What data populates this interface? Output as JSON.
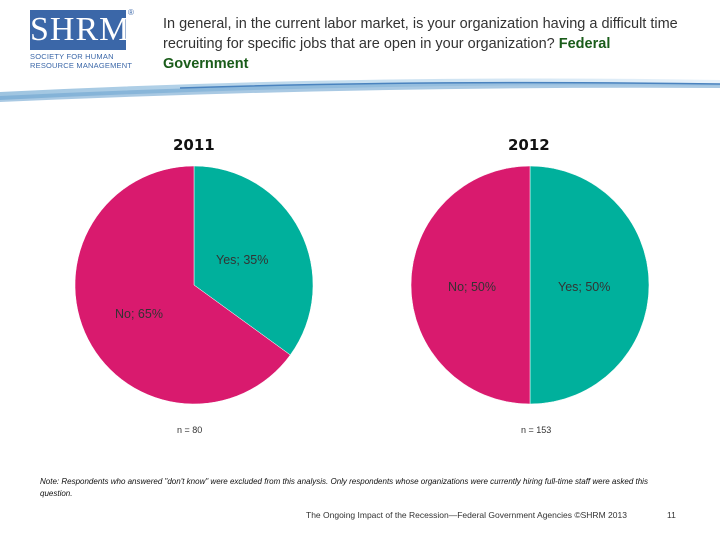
{
  "logo": {
    "mark": "SHRM",
    "reg": "®",
    "tagline": "Society for Human Resource Management"
  },
  "question": {
    "text": "In general, in the current labor market, is your organization having a difficult time recruiting for specific jobs that are open in your organization?",
    "emphasis": "Federal Government"
  },
  "colors": {
    "yes": "#00b09c",
    "no": "#d91a6e",
    "logo": "#3b67a8",
    "emphasis": "#1a5c1a"
  },
  "chart_data": [
    {
      "type": "pie",
      "title": "2011",
      "slices": [
        {
          "label": "Yes",
          "value": 35,
          "text": "Yes; 35%"
        },
        {
          "label": "No",
          "value": 65,
          "text": "No; 65%"
        }
      ],
      "n_label": "n = 80"
    },
    {
      "type": "pie",
      "title": "2012",
      "slices": [
        {
          "label": "Yes",
          "value": 50,
          "text": "Yes; 50%"
        },
        {
          "label": "No",
          "value": 50,
          "text": "No; 50%"
        }
      ],
      "n_label": "n = 153"
    }
  ],
  "note": "Note: Respondents who answered \"don't know\" were excluded from this analysis. Only respondents whose organizations were currently hiring full-time staff were asked this question.",
  "footer": "The Ongoing Impact of the Recession—Federal Government Agencies ©SHRM 2013",
  "page_number": "11"
}
